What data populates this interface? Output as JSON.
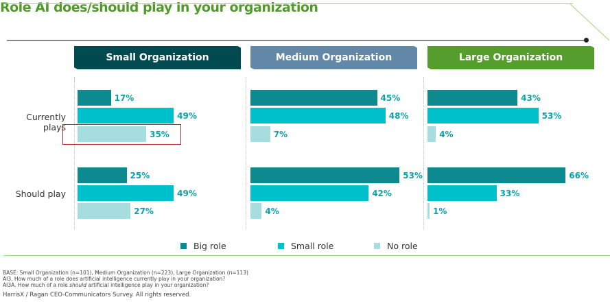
{
  "title": "Role AI does/should play in your organization",
  "footer": {
    "base": "BASE: Small Organization (n=101), Medium Organization (n=223), Large Organization (n=113)",
    "q1": "AI3, How much of a role does artificial intelligence currently play in your organization?",
    "q2_pre": "AI3A. How much of a role ",
    "q2_em": "should",
    "q2_post": " artificial intelligence play in your organization?",
    "credit": "HarrisX / Ragan CEO-Communicators Survey. All rights reserved."
  },
  "chart_data": {
    "type": "bar",
    "orientation": "horizontal",
    "title": "Role AI does/should play in your organization",
    "categories": [
      "Currently plays",
      "Should play"
    ],
    "series_names": [
      "Big role",
      "Small role",
      "No role"
    ],
    "colors": {
      "Big role": "#0d8a8f",
      "Small role": "#00c0cc",
      "No role": "#a8dde0"
    },
    "legend_position": "bottom",
    "highlight": {
      "panel": "Small Organization",
      "category": "Currently plays",
      "series": "No role",
      "color": "#c0272d"
    },
    "panels": [
      {
        "name": "Small Organization",
        "color": "#004a50",
        "values": {
          "Currently plays": [
            17,
            49,
            35
          ],
          "Should play": [
            25,
            49,
            27
          ]
        }
      },
      {
        "name": "Medium Organization",
        "color": "#6387a6",
        "values": {
          "Currently plays": [
            45,
            48,
            7
          ],
          "Should play": [
            53,
            42,
            4
          ]
        }
      },
      {
        "name": "Large Organization",
        "color": "#559d2d",
        "values": {
          "Currently plays": [
            43,
            53,
            4
          ],
          "Should play": [
            66,
            33,
            1
          ]
        }
      }
    ]
  }
}
